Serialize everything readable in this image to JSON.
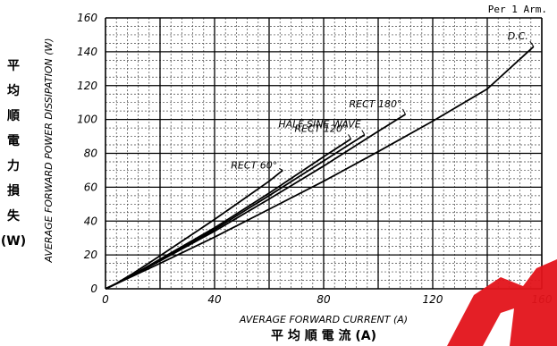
{
  "note": "Per 1 Arm.",
  "y_label_jp": [
    "平",
    "均",
    "順",
    "電",
    "力",
    "損",
    "失",
    "(W)"
  ],
  "x_label_jp": "平 均 順 電 流 (A)",
  "colors": {
    "line": "#000000",
    "grid_major": "#000000",
    "grid_minor": "#444444",
    "watermark": "#e3141b"
  },
  "chart_data": {
    "type": "line",
    "title": "",
    "xlabel": "AVERAGE FORWARD CURRENT (A)",
    "ylabel": "AVERAGE FORWARD POWER DISSIPATION (W)",
    "xlim": [
      0,
      160
    ],
    "ylim": [
      0,
      160
    ],
    "x_ticks": [
      "0",
      "40",
      "80",
      "120",
      "160"
    ],
    "y_ticks": [
      "0",
      "20",
      "40",
      "60",
      "80",
      "100",
      "120",
      "140",
      "160"
    ],
    "grid": true,
    "series": [
      {
        "name": "D.C.",
        "x": [
          0,
          4,
          10,
          20,
          40,
          60,
          80,
          100,
          120,
          140,
          157
        ],
        "y": [
          0,
          3,
          7.5,
          15,
          30.5,
          47,
          63.5,
          81,
          99,
          118,
          143
        ]
      },
      {
        "name": "RECT 180°",
        "x": [
          0,
          4,
          10,
          20,
          40,
          60,
          80,
          100,
          110
        ],
        "y": [
          0,
          3,
          8,
          16.5,
          34,
          53,
          72.5,
          93,
          103
        ]
      },
      {
        "name": "HALF SINE WAVE",
        "x": [
          0,
          4,
          10,
          20,
          40,
          60,
          80,
          95
        ],
        "y": [
          0,
          3,
          8,
          17,
          35,
          55,
          75.5,
          91
        ]
      },
      {
        "name": "RECT 120°",
        "x": [
          0,
          4,
          10,
          20,
          40,
          60,
          80,
          90
        ],
        "y": [
          0,
          3,
          8.2,
          17.5,
          36,
          56.5,
          78,
          88.5
        ]
      },
      {
        "name": "RECT 60°",
        "x": [
          0,
          4,
          10,
          20,
          40,
          60,
          65
        ],
        "y": [
          0,
          3.2,
          9,
          19.5,
          41,
          63.5,
          70
        ]
      }
    ]
  }
}
